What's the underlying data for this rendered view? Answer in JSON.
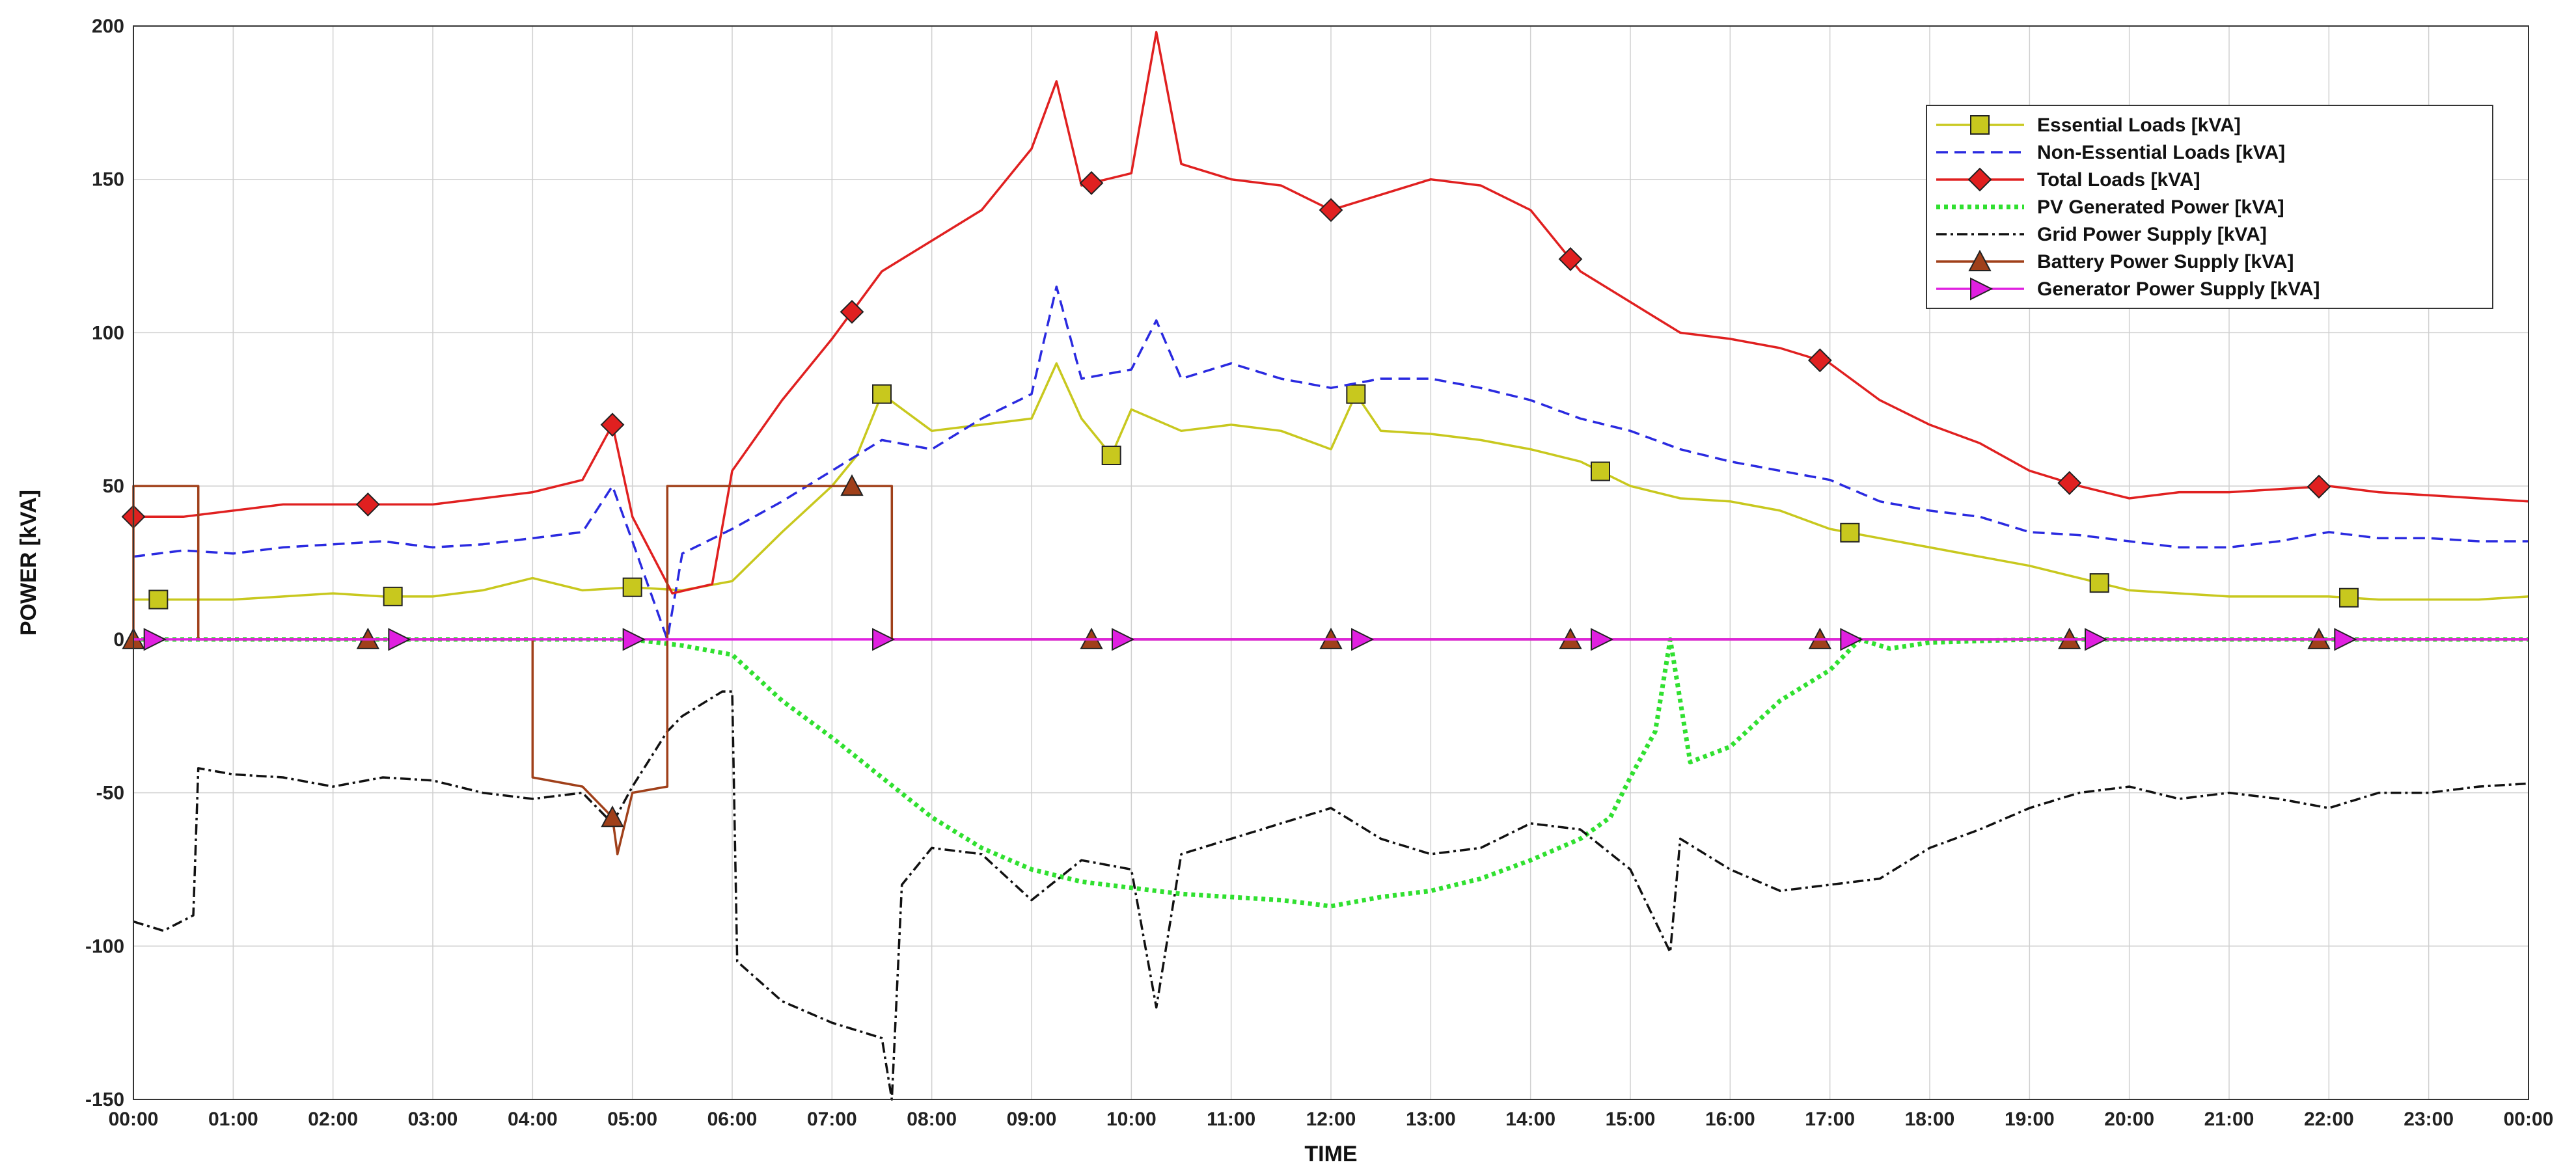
{
  "chart_data": {
    "type": "line",
    "title": "",
    "xlabel": "TIME",
    "ylabel": "POWER [kVA]",
    "ylim": [
      -150,
      200
    ],
    "yticks": [
      "-150",
      "-100",
      "-50",
      "0",
      "50",
      "100",
      "150",
      "200"
    ],
    "xlim": [
      "00:00",
      "24:00"
    ],
    "xticks": [
      "00:00",
      "01:00",
      "02:00",
      "03:00",
      "04:00",
      "05:00",
      "06:00",
      "07:00",
      "08:00",
      "09:00",
      "10:00",
      "11:00",
      "12:00",
      "13:00",
      "14:00",
      "15:00",
      "16:00",
      "17:00",
      "18:00",
      "19:00",
      "20:00",
      "21:00",
      "22:00",
      "23:00",
      "00:00"
    ],
    "grid": true,
    "legend_position": "top-right",
    "series": [
      {
        "name": "Essential Loads [kVA]",
        "color": "#c8c81e",
        "style": "solid",
        "marker": "square",
        "x": [
          0,
          0.5,
          1,
          1.5,
          2,
          2.5,
          3,
          3.5,
          4,
          4.5,
          5,
          5.5,
          6,
          6.5,
          7,
          7.25,
          7.5,
          8,
          8.5,
          9,
          9.25,
          9.5,
          9.8,
          10,
          10.5,
          11,
          11.5,
          12,
          12.25,
          12.5,
          13,
          13.5,
          14,
          14.5,
          15,
          15.5,
          16,
          16.5,
          17,
          17.5,
          18,
          18.5,
          19,
          19.5,
          20,
          20.5,
          21,
          21.5,
          22,
          22.5,
          23,
          23.5,
          24
        ],
        "values": [
          13,
          13,
          13,
          14,
          15,
          14,
          14,
          16,
          20,
          16,
          17,
          16,
          19,
          35,
          50,
          60,
          80,
          68,
          70,
          72,
          90,
          72,
          60,
          75,
          68,
          70,
          68,
          62,
          80,
          68,
          67,
          65,
          62,
          58,
          50,
          46,
          45,
          42,
          36,
          33,
          30,
          27,
          24,
          20,
          16,
          15,
          14,
          14,
          14,
          13,
          13,
          13,
          14
        ]
      },
      {
        "name": "Non-Essential Loads [kVA]",
        "color": "#2a2ae0",
        "style": "dashed",
        "marker": "none",
        "x": [
          0,
          0.5,
          1,
          1.5,
          2,
          2.5,
          3,
          3.5,
          4,
          4.5,
          4.8,
          5,
          5.35,
          5.5,
          6,
          6.5,
          7,
          7.5,
          8,
          8.5,
          9,
          9.25,
          9.5,
          10,
          10.25,
          10.5,
          11,
          11.5,
          12,
          12.5,
          13,
          13.5,
          14,
          14.5,
          15,
          15.5,
          16,
          16.5,
          17,
          17.5,
          18,
          18.5,
          19,
          19.5,
          20,
          20.5,
          21,
          21.5,
          22,
          22.5,
          23,
          23.5,
          24
        ],
        "values": [
          27,
          29,
          28,
          30,
          31,
          32,
          30,
          31,
          33,
          35,
          50,
          32,
          0,
          28,
          36,
          45,
          55,
          65,
          62,
          72,
          80,
          115,
          85,
          88,
          104,
          85,
          90,
          85,
          82,
          85,
          85,
          82,
          78,
          72,
          68,
          62,
          58,
          55,
          52,
          45,
          42,
          40,
          35,
          34,
          32,
          30,
          30,
          32,
          35,
          33,
          33,
          32,
          32
        ]
      },
      {
        "name": "Total Loads [kVA]",
        "color": "#e02020",
        "style": "solid",
        "marker": "diamond",
        "x": [
          0,
          0.5,
          1,
          1.5,
          2,
          2.5,
          3,
          3.5,
          4,
          4.5,
          4.8,
          5,
          5.4,
          5.8,
          6,
          6.5,
          7,
          7.5,
          8,
          8.5,
          9,
          9.25,
          9.5,
          10,
          10.25,
          10.5,
          11,
          11.5,
          12,
          12.5,
          13,
          13.5,
          14,
          14.5,
          15,
          15.5,
          16,
          16.5,
          17,
          17.5,
          18,
          18.5,
          19,
          19.5,
          20,
          20.5,
          21,
          21.5,
          22,
          22.5,
          23,
          23.5,
          24
        ],
        "values": [
          40,
          40,
          42,
          44,
          44,
          44,
          44,
          46,
          48,
          52,
          70,
          40,
          15,
          18,
          55,
          78,
          98,
          120,
          130,
          140,
          160,
          182,
          148,
          152,
          198,
          155,
          150,
          148,
          140,
          145,
          150,
          148,
          140,
          120,
          110,
          100,
          98,
          95,
          90,
          78,
          70,
          64,
          55,
          50,
          46,
          48,
          48,
          49,
          50,
          48,
          47,
          46,
          45
        ]
      },
      {
        "name": "PV Generated Power [kVA]",
        "color": "#30e030",
        "style": "dotted",
        "marker": "none",
        "x": [
          0,
          5,
          5.5,
          6,
          6.5,
          7,
          7.5,
          8,
          8.5,
          9,
          9.5,
          10,
          10.5,
          11,
          11.5,
          12,
          12.5,
          13,
          13.5,
          14,
          14.5,
          14.8,
          15,
          15.25,
          15.4,
          15.6,
          16,
          16.5,
          17,
          17.3,
          17.6,
          18,
          19,
          24
        ],
        "values": [
          0,
          0,
          -2,
          -5,
          -20,
          -32,
          -45,
          -58,
          -68,
          -75,
          -79,
          -81,
          -83,
          -84,
          -85,
          -87,
          -84,
          -82,
          -78,
          -72,
          -65,
          -58,
          -45,
          -30,
          0,
          -40,
          -35,
          -20,
          -10,
          0,
          -3,
          -1,
          0,
          0
        ]
      },
      {
        "name": "Grid Power Supply [kVA]",
        "color": "#111111",
        "style": "dashdot",
        "marker": "none",
        "x": [
          0,
          0.3,
          0.6,
          0.65,
          1,
          1.5,
          2,
          2.5,
          3,
          3.5,
          4,
          4.5,
          4.8,
          5,
          5.35,
          5.5,
          5.9,
          6,
          6.05,
          6.5,
          7,
          7.5,
          7.6,
          7.7,
          8,
          8.5,
          9,
          9.5,
          10,
          10.25,
          10.5,
          11,
          11.5,
          12,
          12.5,
          13,
          13.5,
          14,
          14.5,
          15,
          15.4,
          15.5,
          16,
          16.5,
          17,
          17.5,
          18,
          18.5,
          19,
          19.5,
          20,
          20.5,
          21,
          21.5,
          22,
          22.5,
          23,
          23.5,
          24
        ],
        "values": [
          -92,
          -95,
          -90,
          -42,
          -44,
          -45,
          -48,
          -45,
          -46,
          -50,
          -52,
          -50,
          -60,
          -48,
          -30,
          -25,
          -17,
          -17,
          -105,
          -118,
          -125,
          -130,
          -150,
          -80,
          -68,
          -70,
          -85,
          -72,
          -75,
          -120,
          -70,
          -65,
          -60,
          -55,
          -65,
          -70,
          -68,
          -60,
          -62,
          -75,
          -102,
          -65,
          -75,
          -82,
          -80,
          -78,
          -68,
          -62,
          -55,
          -50,
          -48,
          -52,
          -50,
          -52,
          -55,
          -50,
          -50,
          -48,
          -47
        ]
      },
      {
        "name": "Battery Power Supply [kVA]",
        "color": "#a0401a",
        "style": "solid",
        "marker": "triangle-up",
        "x": [
          0,
          0,
          0.65,
          0.65,
          4,
          4,
          4.5,
          4.8,
          4.85,
          5.0,
          5.35,
          5.35,
          6,
          6,
          7.6,
          7.6,
          24
        ],
        "values": [
          0,
          50,
          50,
          0,
          0,
          -45,
          -48,
          -58,
          -70,
          -50,
          -48,
          50,
          50,
          50,
          50,
          0,
          0
        ]
      },
      {
        "name": "Generator Power Supply [kVA]",
        "color": "#e020e0",
        "style": "solid",
        "marker": "triangle-right",
        "x": [
          0,
          24
        ],
        "values": [
          0,
          0
        ]
      }
    ]
  }
}
